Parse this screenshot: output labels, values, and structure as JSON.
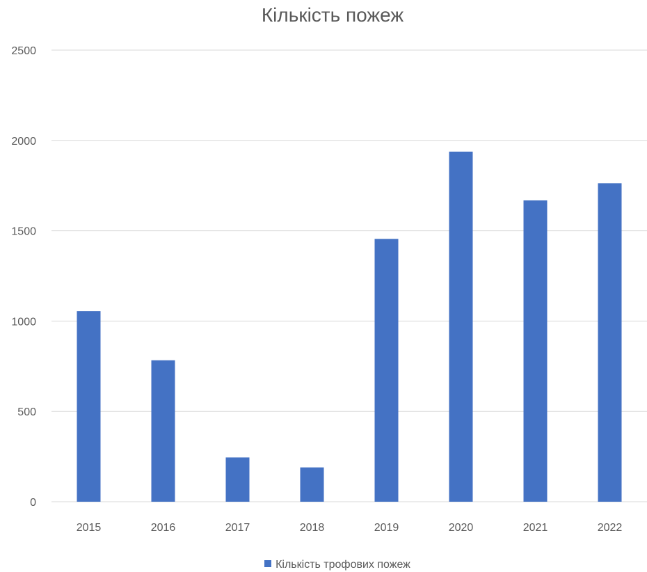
{
  "chart_data": {
    "type": "bar",
    "title": "Кількість пожеж",
    "xlabel": "",
    "ylabel": "",
    "categories": [
      "2015",
      "2016",
      "2017",
      "2018",
      "2019",
      "2020",
      "2021",
      "2022"
    ],
    "series": [
      {
        "name": "Кількість трофових пожеж",
        "color": "#4472C4",
        "values": [
          1055,
          783,
          245,
          190,
          1455,
          1938,
          1668,
          1763
        ]
      }
    ],
    "ylim": [
      0,
      2500
    ],
    "yticks": [
      "0",
      "500",
      "1000",
      "1500",
      "2000",
      "2500"
    ],
    "grid": true,
    "legend_position": "bottom"
  }
}
